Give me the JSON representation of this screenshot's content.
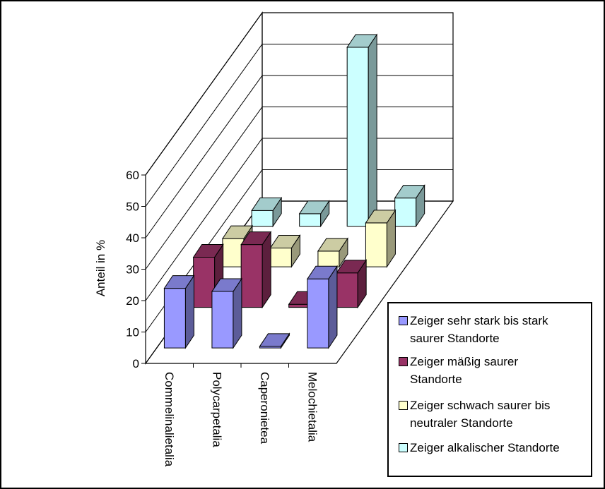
{
  "chart_data": {
    "type": "bar",
    "subtype": "3d-grouped",
    "title": "",
    "xlabel": "",
    "ylabel": "Anteil in %",
    "ylim": [
      0,
      60
    ],
    "yticks": [
      "0",
      "10",
      "20",
      "30",
      "40",
      "50",
      "60"
    ],
    "categories": [
      "Commelinalietalia",
      "Polycarpetalia",
      "Caperonietea",
      "Melochietalia"
    ],
    "grid": true,
    "legend_position": "bottom-right",
    "series": [
      {
        "name": "Zeiger sehr stark bis stark\nsaurer Standorte",
        "color": "#9999ff",
        "values": [
          19,
          18,
          0.5,
          22
        ]
      },
      {
        "name": "Zeiger mäßig saurer\nStandorte",
        "color": "#993366",
        "values": [
          16,
          20,
          1,
          11
        ]
      },
      {
        "name": "Zeiger schwach saurer bis\nneutraler Standorte",
        "color": "#ffffcc",
        "values": [
          9,
          6,
          5,
          14
        ]
      },
      {
        "name": "Zeiger alkalischer Standorte",
        "color": "#ccffff",
        "values": [
          5,
          4,
          57,
          9
        ]
      }
    ]
  }
}
